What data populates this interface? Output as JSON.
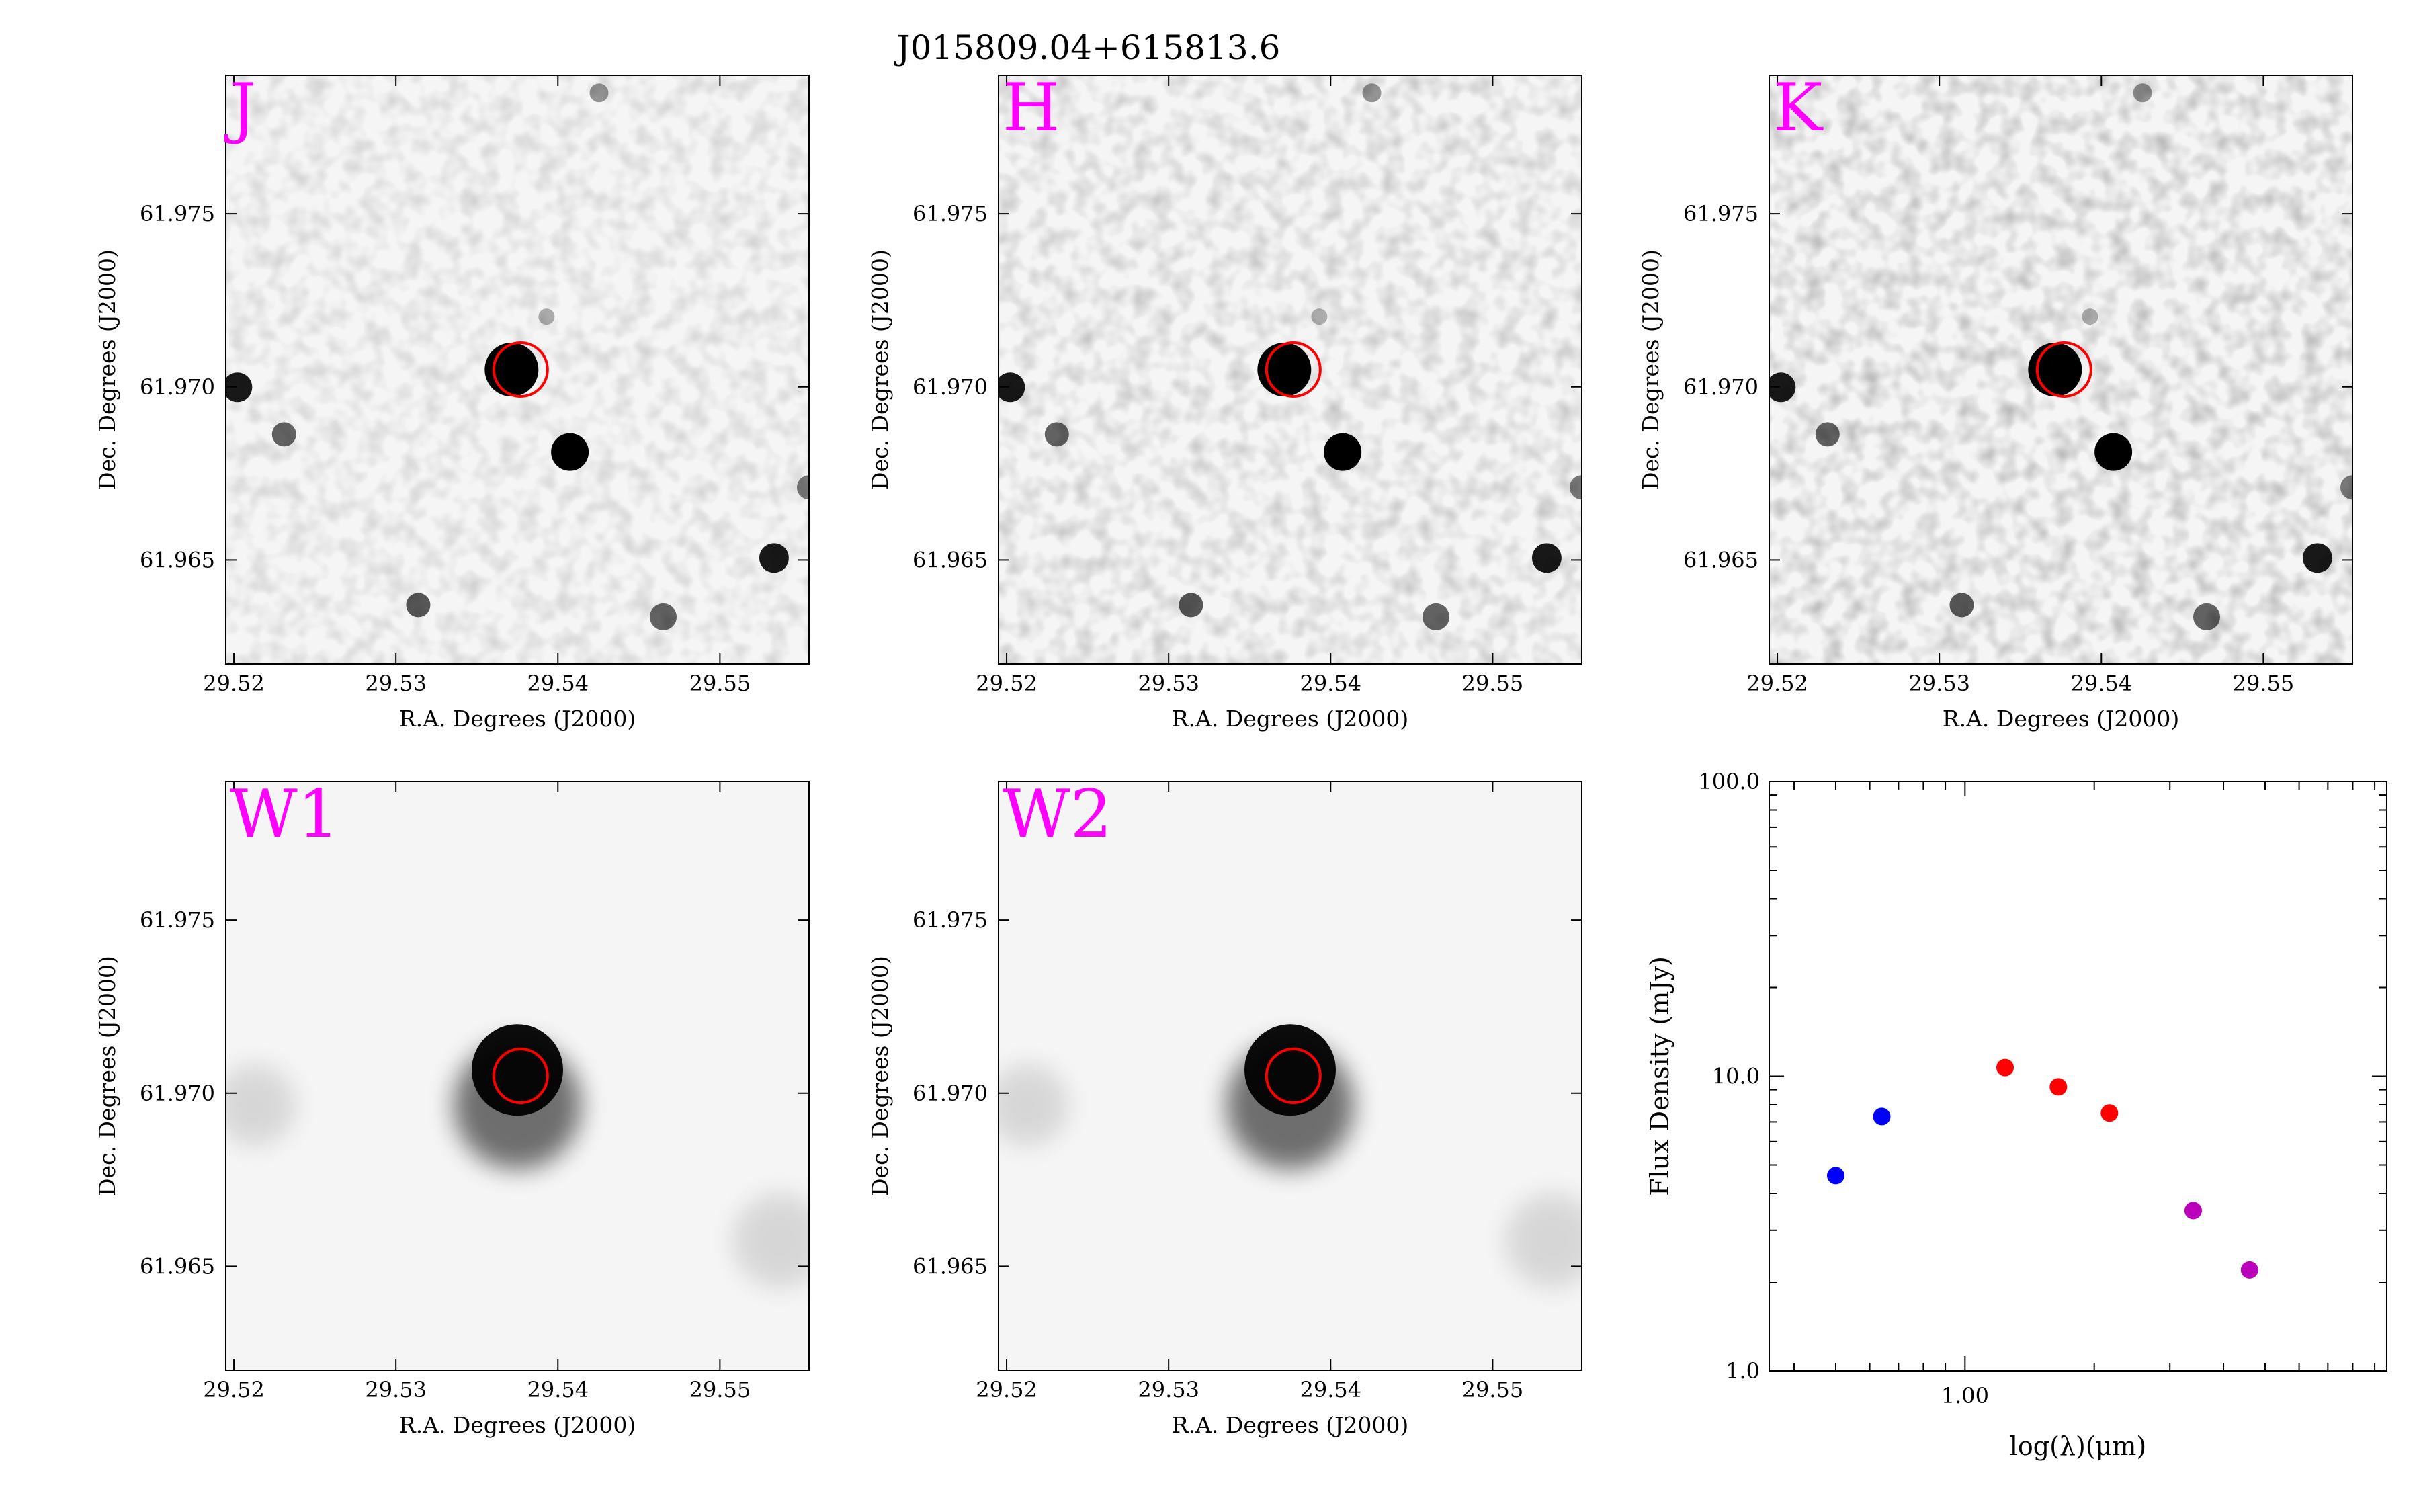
{
  "figure_title": "J015809.04+615813.6",
  "chart_data": [
    {
      "type": "image",
      "panel": "J",
      "band_label": "J",
      "band_color": "#ff00ff",
      "xlabel": "R.A. Degrees (J2000)",
      "ylabel": "Dec. Degrees (J2000)",
      "xlim": [
        29.5195,
        29.5555
      ],
      "ylim": [
        61.962,
        61.979
      ],
      "xticks": [
        29.52,
        29.53,
        29.54,
        29.55
      ],
      "yticks": [
        61.965,
        61.97,
        61.975
      ],
      "xtick_labels": [
        "29.52",
        "29.53",
        "29.54",
        "29.55"
      ],
      "ytick_labels": [
        "61.965",
        "61.970",
        "61.975"
      ],
      "target": {
        "ra": 29.5377,
        "dec": 61.9705,
        "color": "#ff0000"
      }
    },
    {
      "type": "image",
      "panel": "H",
      "band_label": "H",
      "band_color": "#ff00ff",
      "xlabel": "R.A. Degrees (J2000)",
      "ylabel": "Dec. Degrees (J2000)",
      "xlim": [
        29.5195,
        29.5555
      ],
      "ylim": [
        61.962,
        61.979
      ],
      "xticks": [
        29.52,
        29.53,
        29.54,
        29.55
      ],
      "yticks": [
        61.965,
        61.97,
        61.975
      ],
      "xtick_labels": [
        "29.52",
        "29.53",
        "29.54",
        "29.55"
      ],
      "ytick_labels": [
        "61.965",
        "61.970",
        "61.975"
      ],
      "target": {
        "ra": 29.5377,
        "dec": 61.9705,
        "color": "#ff0000"
      }
    },
    {
      "type": "image",
      "panel": "K",
      "band_label": "K",
      "band_color": "#ff00ff",
      "xlabel": "R.A. Degrees (J2000)",
      "ylabel": "Dec. Degrees (J2000)",
      "xlim": [
        29.5195,
        29.5555
      ],
      "ylim": [
        61.962,
        61.979
      ],
      "xticks": [
        29.52,
        29.53,
        29.54,
        29.55
      ],
      "yticks": [
        61.965,
        61.97,
        61.975
      ],
      "xtick_labels": [
        "29.52",
        "29.53",
        "29.54",
        "29.55"
      ],
      "ytick_labels": [
        "61.965",
        "61.970",
        "61.975"
      ],
      "target": {
        "ra": 29.5377,
        "dec": 61.9705,
        "color": "#ff0000"
      }
    },
    {
      "type": "image",
      "panel": "W1",
      "band_label": "W1",
      "band_color": "#ff00ff",
      "xlabel": "R.A. Degrees (J2000)",
      "ylabel": "Dec. Degrees (J2000)",
      "xlim": [
        29.5195,
        29.5555
      ],
      "ylim": [
        61.962,
        61.979
      ],
      "xticks": [
        29.52,
        29.53,
        29.54,
        29.55
      ],
      "yticks": [
        61.965,
        61.97,
        61.975
      ],
      "xtick_labels": [
        "29.52",
        "29.53",
        "29.54",
        "29.55"
      ],
      "ytick_labels": [
        "61.965",
        "61.970",
        "61.975"
      ],
      "target": {
        "ra": 29.5377,
        "dec": 61.9705,
        "color": "#ff0000"
      }
    },
    {
      "type": "image",
      "panel": "W2",
      "band_label": "W2",
      "band_color": "#ff00ff",
      "xlabel": "R.A. Degrees (J2000)",
      "ylabel": "Dec. Degrees (J2000)",
      "xlim": [
        29.5195,
        29.5555
      ],
      "ylim": [
        61.962,
        61.979
      ],
      "xticks": [
        29.52,
        29.53,
        29.54,
        29.55
      ],
      "yticks": [
        61.965,
        61.97,
        61.975
      ],
      "xtick_labels": [
        "29.52",
        "29.53",
        "29.54",
        "29.55"
      ],
      "ytick_labels": [
        "61.965",
        "61.970",
        "61.975"
      ],
      "target": {
        "ra": 29.5377,
        "dec": 61.9705,
        "color": "#ff0000"
      }
    },
    {
      "type": "scatter",
      "panel": "SED",
      "xlabel": "log(λ)(μm)",
      "ylabel": "Flux Density (mJy)",
      "xscale": "log",
      "yscale": "log",
      "xlim": [
        0.35,
        9.6
      ],
      "ylim": [
        1.0,
        100.0
      ],
      "xtick_labels": [
        "1.00"
      ],
      "ytick_labels": [
        "1.0",
        "10.0",
        "100.0"
      ],
      "grid": false,
      "series": [
        {
          "color": "#0000ff",
          "points": [
            {
              "x": 0.5,
              "y": 4.6
            },
            {
              "x": 0.64,
              "y": 7.3
            }
          ]
        },
        {
          "color": "#ff0000",
          "points": [
            {
              "x": 1.24,
              "y": 10.7
            },
            {
              "x": 1.65,
              "y": 9.2
            },
            {
              "x": 2.17,
              "y": 7.5
            }
          ]
        },
        {
          "color": "#bb00bb",
          "points": [
            {
              "x": 3.4,
              "y": 3.5
            },
            {
              "x": 4.6,
              "y": 2.2
            }
          ]
        }
      ]
    }
  ]
}
